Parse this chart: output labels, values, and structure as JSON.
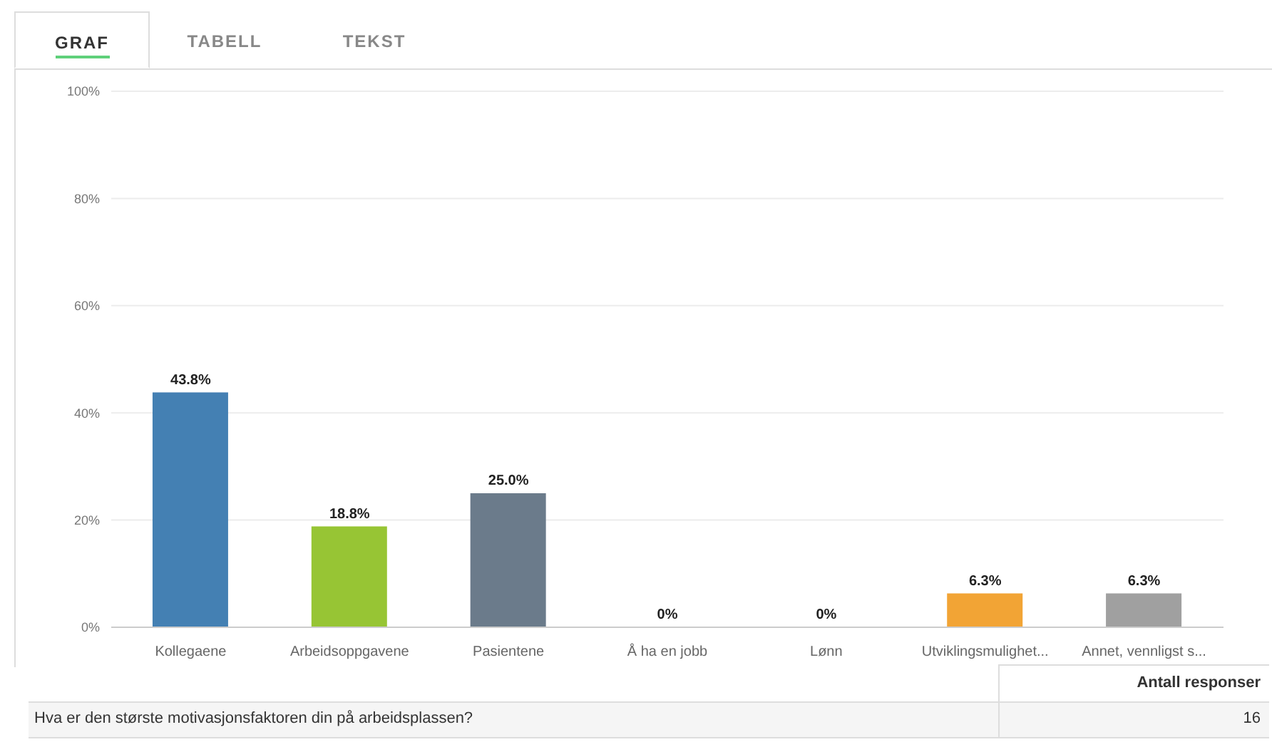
{
  "chart_data": {
    "type": "bar",
    "categories": [
      "Kollegaene",
      "Arbeidsoppgavene",
      "Pasientene",
      "Å ha en jobb",
      "Lønn",
      "Utviklingsmulighet...",
      "Annet, vennligst s..."
    ],
    "values": [
      43.8,
      18.8,
      25.0,
      0,
      0,
      6.3,
      6.3
    ],
    "colors": [
      "#4480b3",
      "#97c534",
      "#6b7b8b",
      "#d9534f",
      "#8e6bb0",
      "#f2a435",
      "#a0a0a0"
    ],
    "value_labels": [
      "43.8%",
      "18.8%",
      "25.0%",
      "0%",
      "0%",
      "6.3%",
      "6.3%"
    ],
    "ylim": [
      0,
      100
    ],
    "yticks": [
      {
        "value": 0,
        "label": "0%"
      },
      {
        "value": 20,
        "label": "20%"
      },
      {
        "value": 40,
        "label": "40%"
      },
      {
        "value": 60,
        "label": "60%"
      },
      {
        "value": 80,
        "label": "80%"
      },
      {
        "value": 100,
        "label": "100%"
      }
    ],
    "grid": "y",
    "legend": false,
    "annotations": [
      "GRAF",
      "TABELL",
      "TEKST",
      "Antall responser",
      "Hva er den største motivasjonsfaktoren din på arbeidsplassen?",
      "16"
    ]
  }
}
